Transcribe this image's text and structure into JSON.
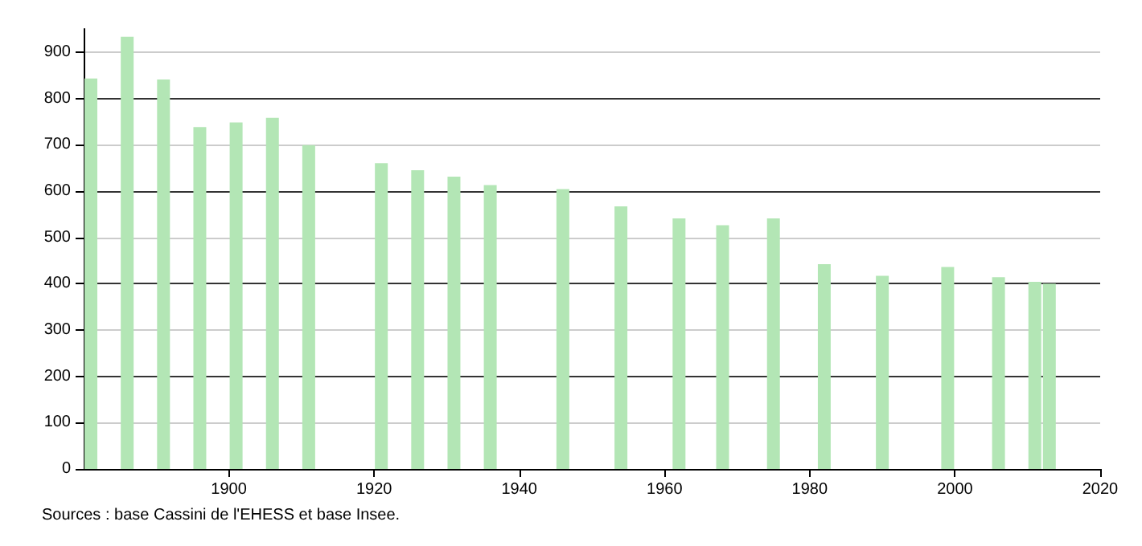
{
  "chart_data": {
    "type": "bar",
    "x": [
      1881,
      1886,
      1891,
      1896,
      1901,
      1906,
      1911,
      1921,
      1926,
      1931,
      1936,
      1946,
      1954,
      1962,
      1968,
      1975,
      1982,
      1990,
      1999,
      2006,
      2011,
      2013
    ],
    "values": [
      843,
      933,
      841,
      738,
      748,
      758,
      699,
      660,
      645,
      631,
      613,
      604,
      567,
      541,
      526,
      541,
      442,
      417,
      436,
      414,
      404,
      400
    ],
    "color": "#b3e6b5",
    "xlim": [
      1880,
      2020
    ],
    "xticks": [
      1900,
      1920,
      1940,
      1960,
      1980,
      2000,
      2020
    ],
    "ylim": [
      0,
      950
    ],
    "yticks": [
      0,
      100,
      200,
      300,
      400,
      500,
      600,
      700,
      800,
      900
    ],
    "grid": "y",
    "annotations": [
      "Sources : base Cassini de l'EHESS et base Insee."
    ]
  }
}
